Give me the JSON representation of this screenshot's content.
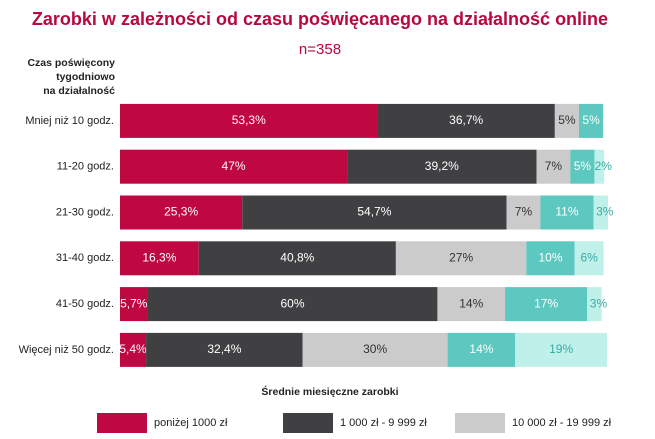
{
  "chart_data": {
    "type": "stacked_bar_horizontal",
    "title": "Zarobki w zależności od czasu poświęcanego na działalność online",
    "subtitle": "n=358",
    "ylabel": [
      "Czas poświęcony",
      "tygodniowo",
      "na działalność"
    ],
    "legend_title": "Średnie miesięczne zarobki",
    "categories": [
      "Mniej niż 10 godz.",
      "11-20 godz.",
      "21-30 godz.",
      "31-40 godz.",
      "41-50 godz.",
      "Więcej niż 50 godz."
    ],
    "series": [
      {
        "name": "poniżej 1000 zł",
        "color": "#bf0842",
        "label_color": "#ffffff",
        "values": [
          53.3,
          47,
          25.3,
          16.3,
          5.7,
          5.4
        ],
        "value_labels": [
          "53,3%",
          "47%",
          "25,3%",
          "16,3%",
          "5,7%",
          "5,4%"
        ]
      },
      {
        "name": "1 000 zł - 9 999 zł",
        "color": "#404042",
        "label_color": "#ffffff",
        "values": [
          36.7,
          39.2,
          54.7,
          40.8,
          60,
          32.4
        ],
        "value_labels": [
          "36,7%",
          "39,2%",
          "54,7%",
          "40,8%",
          "60%",
          "32,4%"
        ]
      },
      {
        "name": "10 000 zł - 19 999 zł",
        "color": "#cbcbcb",
        "label_color": "#333333",
        "values": [
          5,
          7,
          7,
          27,
          14,
          30
        ],
        "value_labels": [
          "5%",
          "7%",
          "7%",
          "27%",
          "14%",
          "30%"
        ]
      },
      {
        "color": "#5cc8c0",
        "label_color": "#ffffff",
        "values": [
          5,
          5,
          11,
          10,
          17,
          14
        ],
        "value_labels": [
          "5%",
          "5%",
          "11%",
          "10%",
          "17%",
          "14%"
        ]
      },
      {
        "color": "#bff0ea",
        "label_color": "#3aaaa2",
        "values": [
          0,
          2,
          3,
          6,
          3,
          19
        ],
        "value_labels": [
          null,
          "2%",
          "3%",
          "6%",
          "3%",
          "19%"
        ]
      }
    ]
  }
}
